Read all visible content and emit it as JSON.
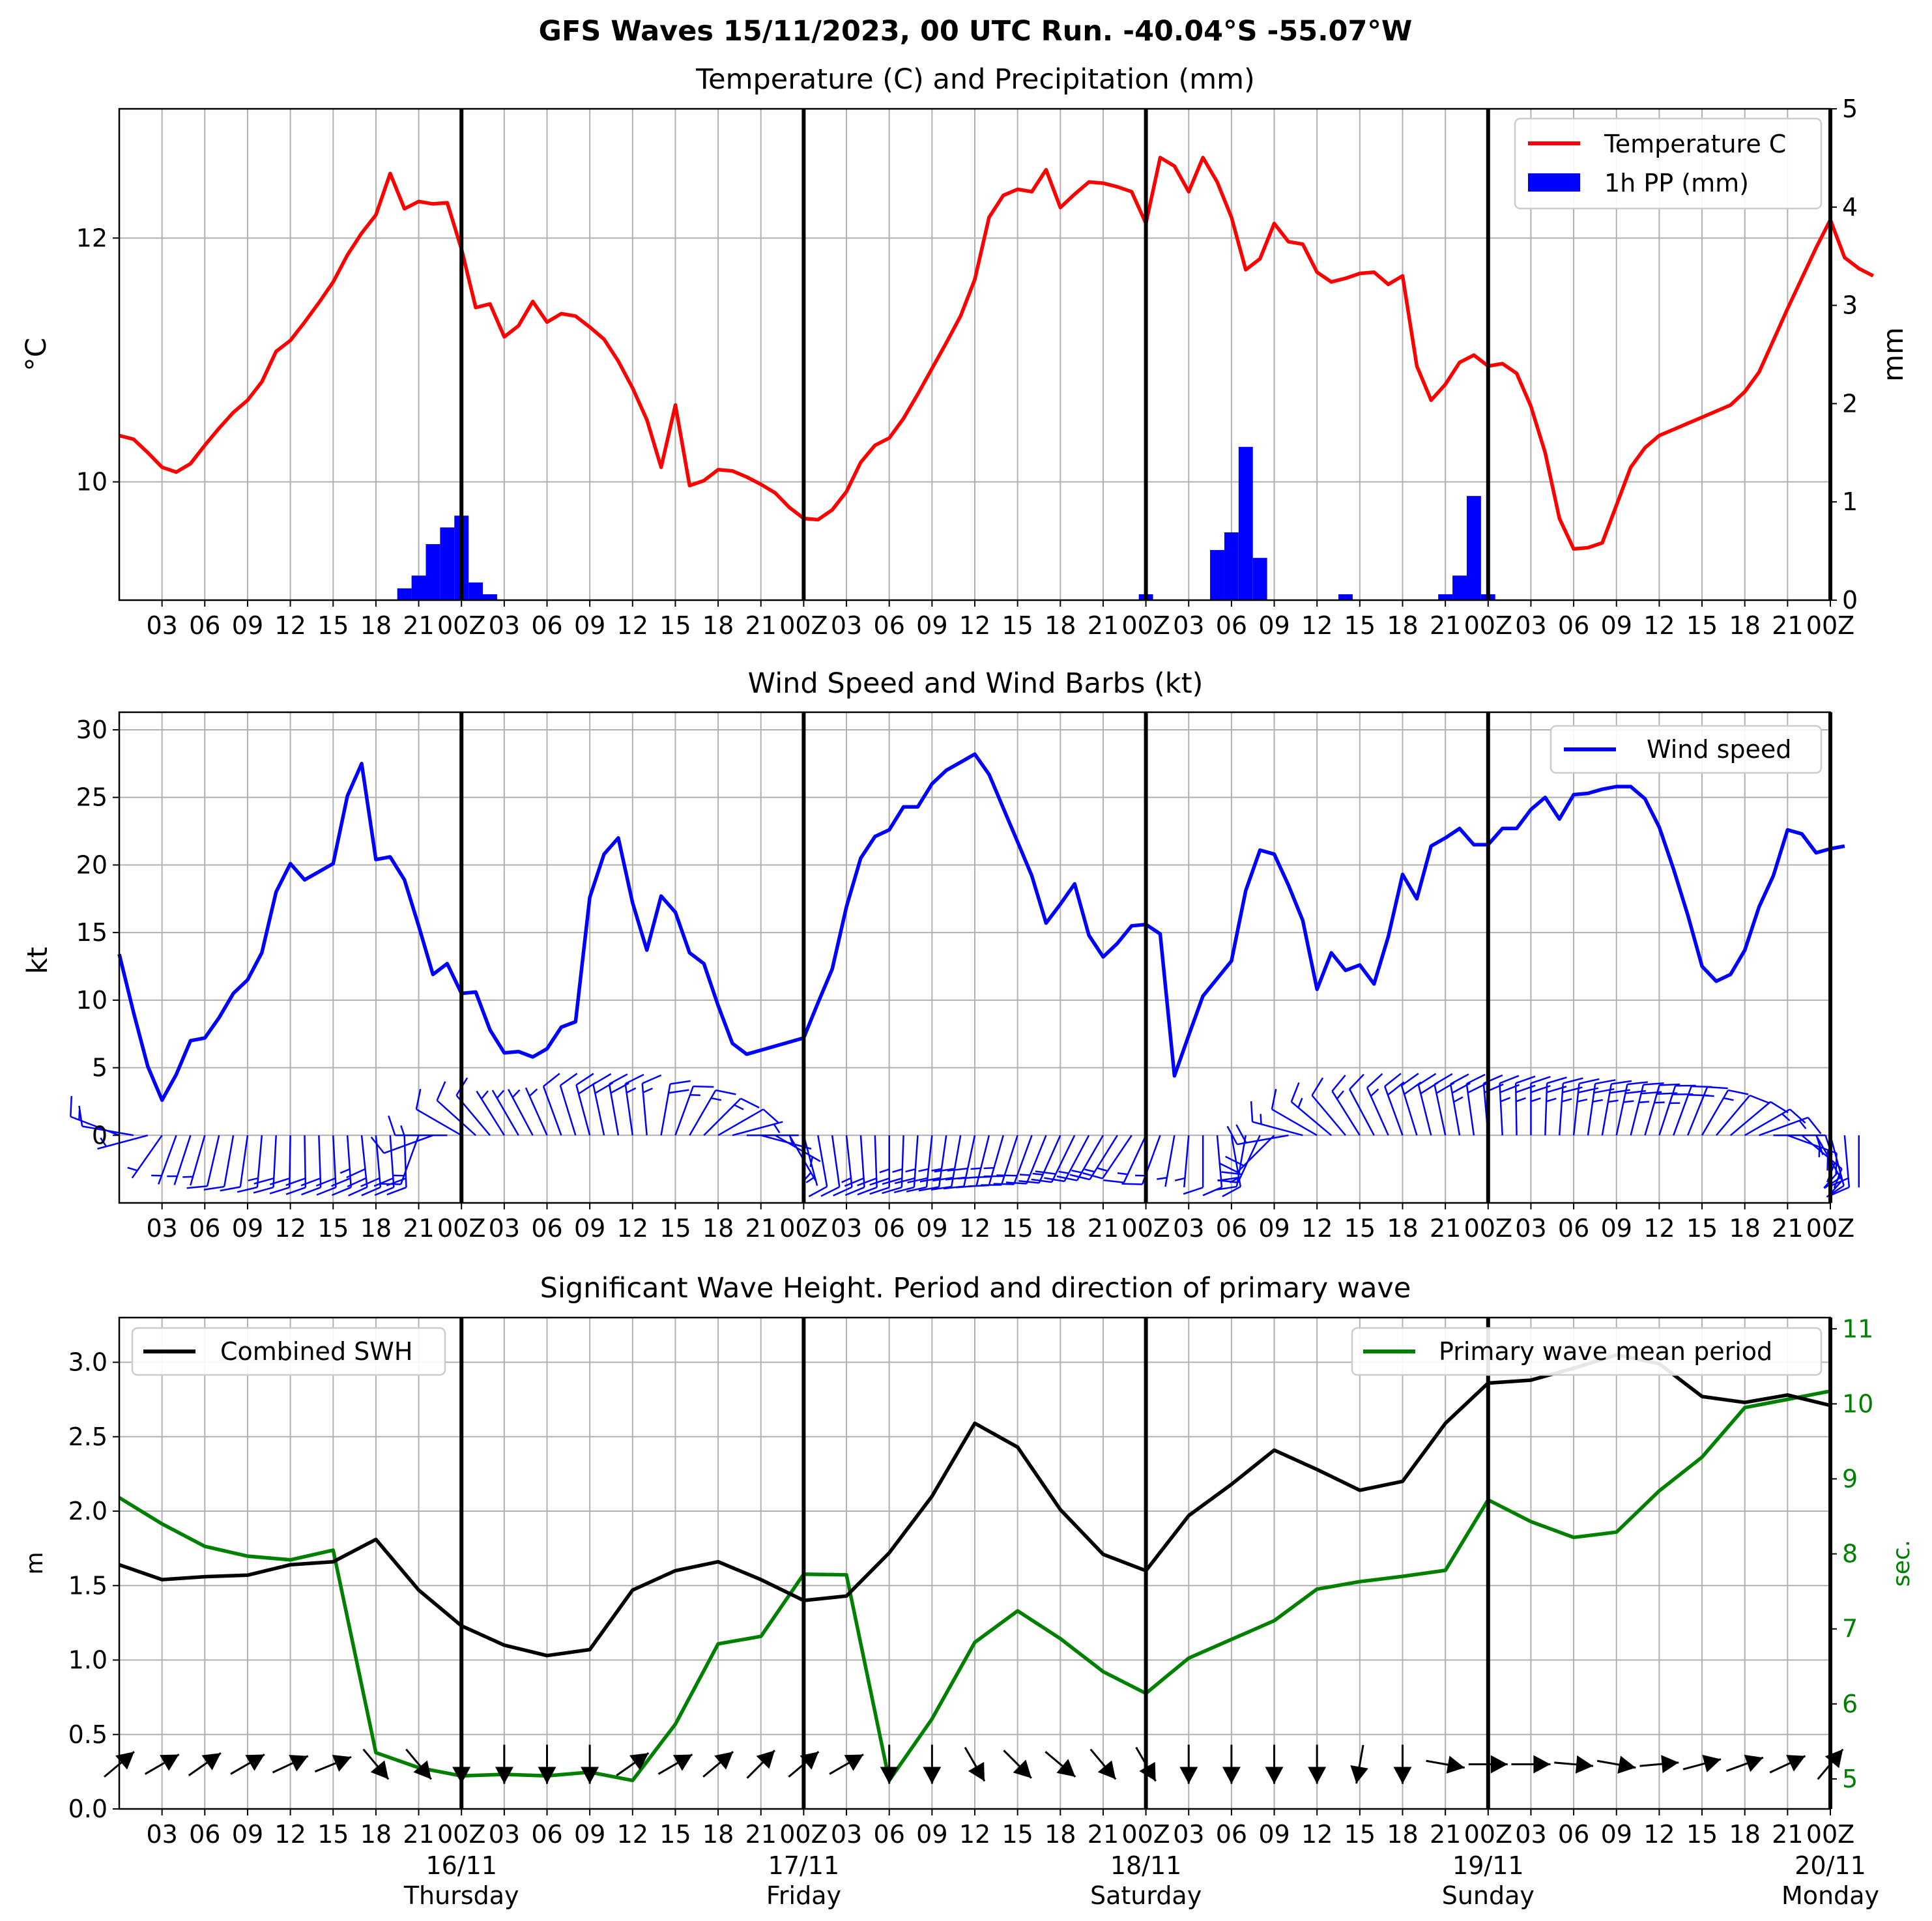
{
  "figure_title": "GFS Waves 15/11/2023, 00 UTC Run. -40.04°S -55.07°W",
  "colors": {
    "temperature": "#ff0000",
    "precip": "#0000ff",
    "wind": "#0000ff",
    "barbs": "#0000ff",
    "swh": "#000000",
    "period": "#008000",
    "wave_dir": "#000000",
    "grid": "#b0b0b0"
  },
  "time_axis": {
    "start": "15/11 00Z",
    "step_hours": 3,
    "tick_hours": 3,
    "labels": [
      "03",
      "06",
      "09",
      "12",
      "15",
      "18",
      "21",
      "00Z",
      "03",
      "06",
      "09",
      "12",
      "15",
      "18",
      "21",
      "00Z",
      "03",
      "06",
      "09",
      "12",
      "15",
      "18",
      "21",
      "00Z",
      "03",
      "06",
      "09",
      "12",
      "15",
      "18",
      "21",
      "00Z",
      "03",
      "06",
      "09",
      "12",
      "15",
      "18",
      "21",
      "00Z"
    ],
    "day_labels": [
      {
        "date": "16/11",
        "weekday": "Thursday"
      },
      {
        "date": "17/11",
        "weekday": "Friday"
      },
      {
        "date": "18/11",
        "weekday": "Saturday"
      },
      {
        "date": "19/11",
        "weekday": "Sunday"
      },
      {
        "date": "20/11",
        "weekday": "Monday"
      }
    ]
  },
  "chart_data": [
    {
      "type": "line",
      "title": "Temperature (C) and Precipitation (mm)",
      "ylabel": "$^\\circ$C",
      "ylabel_text": "°C",
      "y2label": "mm",
      "ylim": [
        9.03,
        13.06
      ],
      "yticks": [
        10,
        12
      ],
      "y2lim": [
        0,
        5
      ],
      "y2ticks": [
        0,
        1,
        2,
        3,
        4,
        5
      ],
      "legend": {
        "position": "top-right",
        "entries": [
          "Temperature C",
          "1h PP (mm)"
        ]
      },
      "grid": true,
      "series": [
        {
          "name": "Temperature C",
          "step_hours": 1,
          "values": [
            10.38,
            10.35,
            10.24,
            10.12,
            10.08,
            10.15,
            10.3,
            10.44,
            10.57,
            10.67,
            10.82,
            11.07,
            11.16,
            11.31,
            11.47,
            11.64,
            11.86,
            12.04,
            12.19,
            12.53,
            12.24,
            12.3,
            12.28,
            12.29,
            11.91,
            11.43,
            11.46,
            11.19,
            11.28,
            11.48,
            11.31,
            11.38,
            11.36,
            11.27,
            11.17,
            10.99,
            10.77,
            10.51,
            10.12,
            10.63,
            9.97,
            10.01,
            10.1,
            10.09,
            10.04,
            9.98,
            9.91,
            9.79,
            9.7,
            9.69,
            9.77,
            9.92,
            10.16,
            10.3,
            10.36,
            10.52,
            10.72,
            10.93,
            11.14,
            11.36,
            11.66,
            12.17,
            12.35,
            12.4,
            12.38,
            12.56,
            12.25,
            12.36,
            12.46,
            12.45,
            12.42,
            12.38,
            12.12,
            12.66,
            12.59,
            12.38,
            12.66,
            12.46,
            12.17,
            11.74,
            11.83,
            12.12,
            11.97,
            11.95,
            11.72,
            11.64,
            11.67,
            11.71,
            11.72,
            11.62,
            11.69,
            10.95,
            10.67,
            10.8,
            10.98,
            11.04,
            10.95,
            10.97,
            10.89,
            10.62,
            10.24,
            9.7,
            9.45,
            9.46,
            9.5,
            9.81,
            10.12,
            10.28,
            10.38,
            10.43,
            10.48,
            10.53,
            10.58,
            10.63,
            10.74,
            10.9,
            11.16,
            11.42,
            11.67,
            11.92,
            12.15,
            11.84,
            11.75,
            11.69
          ]
        },
        {
          "name": "1h PP (mm)",
          "step_hours": 1,
          "axis": "y2",
          "type": "bar",
          "values": [
            0,
            0,
            0,
            0,
            0,
            0,
            0,
            0,
            0,
            0,
            0,
            0,
            0,
            0,
            0,
            0,
            0,
            0,
            0,
            0,
            0.12,
            0.25,
            0.57,
            0.74,
            0.86,
            0.18,
            0.06,
            0,
            0,
            0,
            0,
            0,
            0,
            0,
            0,
            0,
            0,
            0,
            0,
            0,
            0,
            0,
            0,
            0,
            0,
            0,
            0,
            0,
            0,
            0,
            0,
            0,
            0,
            0,
            0,
            0,
            0,
            0,
            0,
            0,
            0,
            0,
            0,
            0,
            0,
            0,
            0,
            0,
            0,
            0,
            0,
            0,
            0.06,
            0,
            0,
            0,
            0,
            0.51,
            0.69,
            1.56,
            0.43,
            0,
            0,
            0,
            0,
            0,
            0.06,
            0,
            0,
            0,
            0,
            0,
            0,
            0.06,
            0.25,
            1.06,
            0.06,
            0,
            0,
            0,
            0,
            0,
            0,
            0,
            0,
            0,
            0,
            0,
            0,
            0,
            0,
            0,
            0,
            0,
            0,
            0,
            0,
            0,
            0,
            0,
            0,
            0,
            0,
            0,
            0,
            0
          ]
        }
      ]
    },
    {
      "type": "line",
      "title": "Wind Speed and Wind Barbs (kt)",
      "ylabel": "kt",
      "ylim": [
        -5,
        31.3
      ],
      "yticks": [
        0,
        5,
        10,
        15,
        20,
        25,
        30
      ],
      "legend": {
        "position": "top-right",
        "entries": [
          "Wind speed"
        ]
      },
      "grid": true,
      "series": [
        {
          "name": "Wind speed",
          "step_hours": 1,
          "values": [
            13.4,
            9.1,
            5.1,
            2.6,
            4.5,
            7,
            7.2,
            8.7,
            10.5,
            11.5,
            13.5,
            18,
            20.1,
            18.9,
            19.5,
            20.1,
            25.1,
            27.5,
            20.4,
            20.6,
            18.9,
            15.5,
            11.9,
            12.7,
            10.5,
            10.6,
            7.8,
            6.1,
            6.2,
            5.8,
            6.4,
            8,
            8.4,
            17.6,
            20.8,
            22,
            17.2,
            13.7,
            17.7,
            16.5,
            13.5,
            12.7,
            9.6,
            6.8,
            6,
            6.3,
            6.6,
            6.9,
            7.2,
            9.8,
            12.3,
            16.9,
            20.5,
            22.1,
            22.6,
            24.3,
            24.3,
            26,
            27,
            27.6,
            28.2,
            26.7,
            24.2,
            21.7,
            19.2,
            15.7,
            17.1,
            18.6,
            14.8,
            13.2,
            14.2,
            15.5,
            15.6,
            14.9,
            4.4,
            7.4,
            10.3,
            11.6,
            12.9,
            18.1,
            21.1,
            20.8,
            18.5,
            15.9,
            10.8,
            13.5,
            12.2,
            12.6,
            11.2,
            14.7,
            19.3,
            17.5,
            21.4,
            22,
            22.7,
            21.5,
            21.5,
            22.7,
            22.7,
            24.1,
            25,
            23.4,
            25.2,
            25.3,
            25.6,
            25.8,
            25.8,
            24.9,
            22.8,
            19.7,
            16.3,
            12.5,
            11.4,
            11.9,
            13.7,
            16.9,
            19.2,
            22.6,
            22.3,
            20.9,
            21.2,
            21.4
          ]
        },
        {
          "name": "Wind barbs",
          "type": "barbs",
          "step_hours": 1,
          "direction_deg": [
            291,
            280,
            255,
            215,
            200,
            198,
            196,
            193,
            190,
            188,
            185,
            183,
            181,
            179,
            178,
            177,
            176,
            174,
            175,
            176,
            178,
            200,
            250,
            270,
            300,
            312,
            320,
            328,
            330,
            332,
            336,
            340,
            343,
            345,
            348,
            350,
            352,
            355,
            10,
            20,
            30,
            45,
            60,
            75,
            90,
            105,
            120,
            150,
            165,
            170,
            172,
            174,
            176,
            178,
            180,
            182,
            184,
            186,
            188,
            190,
            192,
            194,
            196,
            198,
            200,
            202,
            204,
            206,
            208,
            210,
            212,
            214,
            205,
            200,
            190,
            185,
            180,
            175,
            170,
            190,
            205,
            225,
            260,
            285,
            300,
            310,
            320,
            328,
            332,
            336,
            340,
            343,
            346,
            348,
            350,
            352,
            355,
            357,
            359,
            0,
            2,
            4,
            6,
            8,
            10,
            12,
            14,
            16,
            18,
            20,
            22,
            30,
            40,
            50,
            60,
            70,
            90,
            110,
            130,
            150,
            165,
            175,
            180
          ]
        }
      ]
    },
    {
      "type": "line",
      "title": "Significant Wave Height. Period and direction of primary wave",
      "ylabel": "m",
      "y2label": "sec.",
      "ylim": [
        0,
        3.3
      ],
      "yticks": [
        0.0,
        0.5,
        1.0,
        1.5,
        2.0,
        2.5,
        3.0
      ],
      "y2lim": [
        4.6,
        11.15
      ],
      "y2ticks": [
        5,
        6,
        7,
        8,
        9,
        10,
        11
      ],
      "legend": [
        {
          "position": "top-left",
          "entries": [
            "Combined SWH"
          ]
        },
        {
          "position": "top-right",
          "entries": [
            "Primary wave mean period"
          ]
        }
      ],
      "grid": true,
      "series": [
        {
          "name": "Combined SWH",
          "step_hours": 3,
          "values": [
            1.64,
            1.54,
            1.56,
            1.57,
            1.64,
            1.66,
            1.81,
            1.47,
            1.23,
            1.1,
            1.03,
            1.07,
            1.47,
            1.6,
            1.66,
            1.54,
            1.4,
            1.43,
            1.72,
            2.1,
            2.59,
            2.43,
            2.01,
            1.71,
            1.6,
            1.97,
            2.18,
            2.41,
            2.28,
            2.14,
            2.2,
            2.59,
            2.86,
            2.88,
            2.96,
            3.05,
            2.99,
            2.77,
            2.73,
            2.78,
            2.71
          ]
        },
        {
          "name": "Primary wave mean period",
          "axis": "y2",
          "step_hours": 3,
          "values": [
            8.75,
            8.4,
            8.1,
            7.97,
            7.92,
            8.05,
            5.35,
            5.15,
            5.04,
            5.06,
            5.04,
            5.09,
            4.98,
            5.73,
            6.8,
            6.9,
            7.73,
            7.72,
            4.98,
            5.8,
            6.82,
            7.24,
            6.87,
            6.43,
            6.14,
            6.61,
            6.86,
            7.11,
            7.53,
            7.63,
            7.7,
            7.78,
            8.72,
            8.43,
            8.22,
            8.29,
            8.84,
            9.29,
            9.95,
            10.06,
            10.17
          ]
        },
        {
          "name": "Primary wave direction",
          "type": "arrows",
          "step_hours": 3,
          "direction_deg": [
            230,
            240,
            235,
            240,
            245,
            248,
            320,
            320,
            0,
            0,
            0,
            0,
            235,
            240,
            230,
            225,
            230,
            240,
            0,
            0,
            330,
            315,
            310,
            320,
            330,
            0,
            0,
            0,
            0,
            10,
            0,
            280,
            270,
            270,
            275,
            280,
            265,
            255,
            250,
            245,
            220
          ]
        }
      ]
    }
  ]
}
